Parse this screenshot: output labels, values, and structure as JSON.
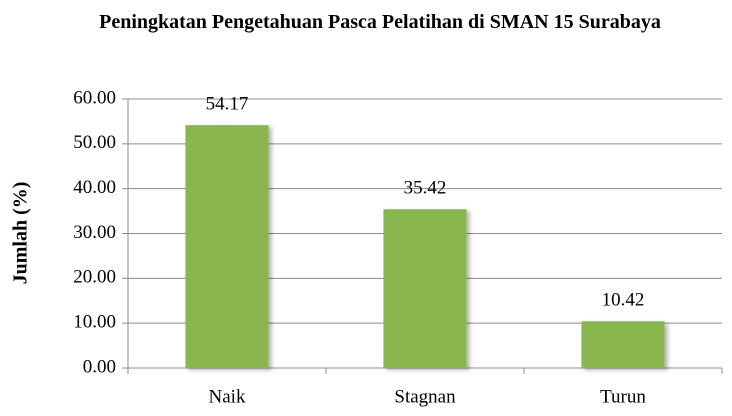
{
  "chart_data": {
    "type": "bar",
    "title": "Peningkatan Pengetahuan Pasca Pelatihan di SMAN 15 Surabaya",
    "y_label": "Jumlah (%)",
    "categories": [
      "Naik",
      "Stagnan",
      "Turun"
    ],
    "values": [
      54.17,
      35.42,
      10.42
    ],
    "color": "#8ab650",
    "ylim": [
      0,
      60
    ],
    "yticks": [
      {
        "value": 0,
        "label": "0.00"
      },
      {
        "value": 10,
        "label": "10.00"
      },
      {
        "value": 20,
        "label": "20.00"
      },
      {
        "value": 30,
        "label": "30.00"
      },
      {
        "value": 40,
        "label": "40.00"
      },
      {
        "value": 50,
        "label": "50.00"
      },
      {
        "value": 60,
        "label": "60.00"
      }
    ],
    "grid": true
  }
}
